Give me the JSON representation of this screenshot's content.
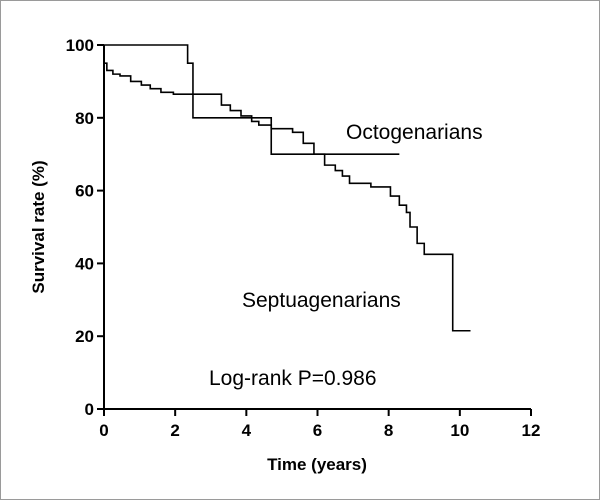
{
  "chart_data": {
    "type": "line",
    "step": true,
    "xlabel": "Time (years)",
    "ylabel": "Survival rate (%)",
    "xlim": [
      0,
      12
    ],
    "ylim": [
      0,
      100
    ],
    "xticks": [
      0,
      2,
      4,
      6,
      8,
      10,
      12
    ],
    "yticks": [
      0,
      20,
      40,
      60,
      80,
      100
    ],
    "grid": false,
    "series": [
      {
        "name": "Octogenarians",
        "x": [
          0,
          2.2,
          2.35,
          2.5,
          4.7,
          8.3
        ],
        "y": [
          100,
          100,
          95,
          80,
          70,
          70
        ]
      },
      {
        "name": "Septuagenarians",
        "x": [
          0,
          0.08,
          0.25,
          0.45,
          0.75,
          1.05,
          1.3,
          1.6,
          1.95,
          3.3,
          3.55,
          3.85,
          4.15,
          4.35,
          4.7,
          5.3,
          5.6,
          5.9,
          6.2,
          6.5,
          6.7,
          6.9,
          7.5,
          8.05,
          8.3,
          8.5,
          8.6,
          8.8,
          9.0,
          9.8,
          10.3
        ],
        "y": [
          95,
          93,
          92,
          91.5,
          90,
          89,
          88,
          87,
          86.5,
          83.5,
          82,
          80.5,
          79,
          78,
          77,
          76,
          73,
          70,
          67,
          65.5,
          64,
          62,
          61,
          58.5,
          56,
          54,
          50,
          45.5,
          42.5,
          21.5,
          21.5
        ]
      }
    ],
    "annotations": [
      {
        "text": "Octogenarians"
      },
      {
        "text": "Septuagenarians"
      },
      {
        "text": "Log-rank P=0.986"
      }
    ]
  }
}
